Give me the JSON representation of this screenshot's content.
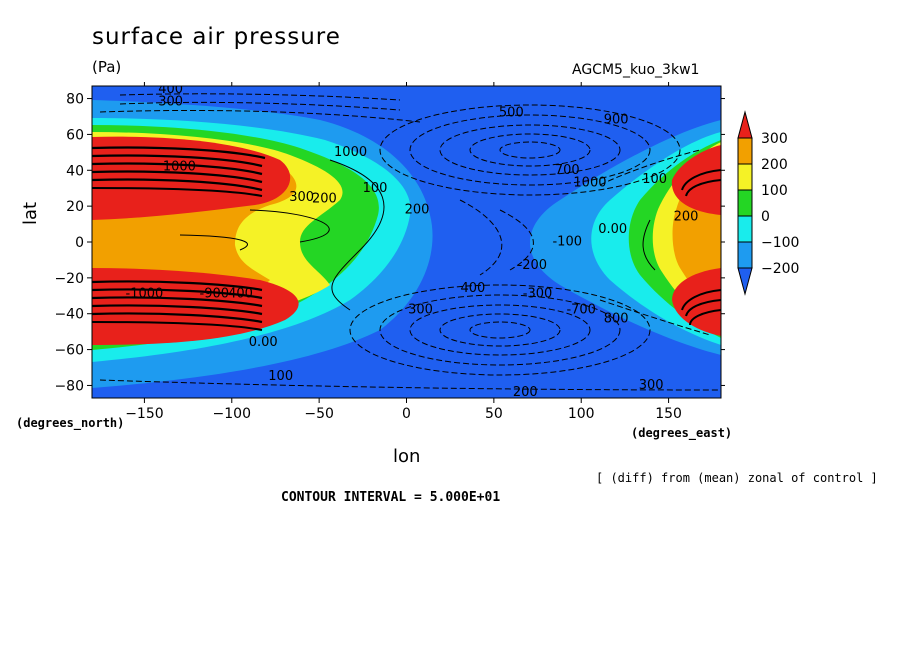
{
  "title": "surface air pressure",
  "units": "(Pa)",
  "model": "AGCM5_kuo_3kw1",
  "note": "[ (diff) from (mean) zonal of control ]",
  "contour_interval": "CONTOUR INTERVAL = 5.000E+01",
  "lat_units": "(degrees_north)",
  "lon_units": "(degrees_east)",
  "chart_data": {
    "type": "heatmap",
    "title": "surface air pressure",
    "subtitle": "(Pa)",
    "xlabel": "lon",
    "ylabel": "lat",
    "xlim": [
      -180,
      180
    ],
    "ylim": [
      -87,
      87
    ],
    "xticks": [
      -150,
      -100,
      -50,
      0,
      50,
      100,
      150
    ],
    "yticks": [
      80,
      60,
      40,
      20,
      0,
      -20,
      -40,
      -60,
      -80
    ],
    "colorbar": {
      "labels": [
        "300",
        "200",
        "100",
        "0",
        "-100",
        "-200"
      ],
      "bins": [
        {
          "range": ">300",
          "color": "#e8211b"
        },
        {
          "range": "200 to 300",
          "color": "#f2a000"
        },
        {
          "range": "100 to 200",
          "color": "#f5f226"
        },
        {
          "range": "0 to 100",
          "color": "#24d624"
        },
        {
          "range": "-100 to 0",
          "color": "#19ecec"
        },
        {
          "range": "-200 to -100",
          "color": "#1e9bf0"
        },
        {
          "range": "<-200",
          "color": "#1f5ff0"
        }
      ]
    },
    "contour_labels": [
      {
        "text": "400",
        "lon": -135,
        "lat": 83
      },
      {
        "text": "300",
        "lon": -135,
        "lat": 76
      },
      {
        "text": "500",
        "lon": 60,
        "lat": 70
      },
      {
        "text": "900",
        "lon": 120,
        "lat": 66
      },
      {
        "text": "1000",
        "lon": -32,
        "lat": 48
      },
      {
        "text": "1000",
        "lon": -130,
        "lat": 40
      },
      {
        "text": "700",
        "lon": 92,
        "lat": 38
      },
      {
        "text": "1000",
        "lon": 105,
        "lat": 31
      },
      {
        "text": "100",
        "lon": 142,
        "lat": 33
      },
      {
        "text": "300",
        "lon": -60,
        "lat": 23
      },
      {
        "text": "200",
        "lon": -47,
        "lat": 22
      },
      {
        "text": "100",
        "lon": -18,
        "lat": 28
      },
      {
        "text": "200",
        "lon": 6,
        "lat": 16
      },
      {
        "text": "200",
        "lon": 160,
        "lat": 12
      },
      {
        "text": "0.00",
        "lon": 118,
        "lat": 5
      },
      {
        "text": "-100",
        "lon": 92,
        "lat": -2
      },
      {
        "text": "-200",
        "lon": 72,
        "lat": -15
      },
      {
        "text": "-1000",
        "lon": -150,
        "lat": -31
      },
      {
        "text": "-900",
        "lon": -110,
        "lat": -31
      },
      {
        "text": "400",
        "lon": -95,
        "lat": -31
      },
      {
        "text": "400",
        "lon": 38,
        "lat": -28
      },
      {
        "text": "-300",
        "lon": 75,
        "lat": -31
      },
      {
        "text": "-700",
        "lon": 100,
        "lat": -40
      },
      {
        "text": "800",
        "lon": 120,
        "lat": -45
      },
      {
        "text": "300",
        "lon": 8,
        "lat": -40
      },
      {
        "text": "0.00",
        "lon": -82,
        "lat": -58
      },
      {
        "text": "100",
        "lon": -72,
        "lat": -77
      },
      {
        "text": "200",
        "lon": 68,
        "lat": -86
      },
      {
        "text": "300",
        "lon": 140,
        "lat": -82
      }
    ]
  }
}
